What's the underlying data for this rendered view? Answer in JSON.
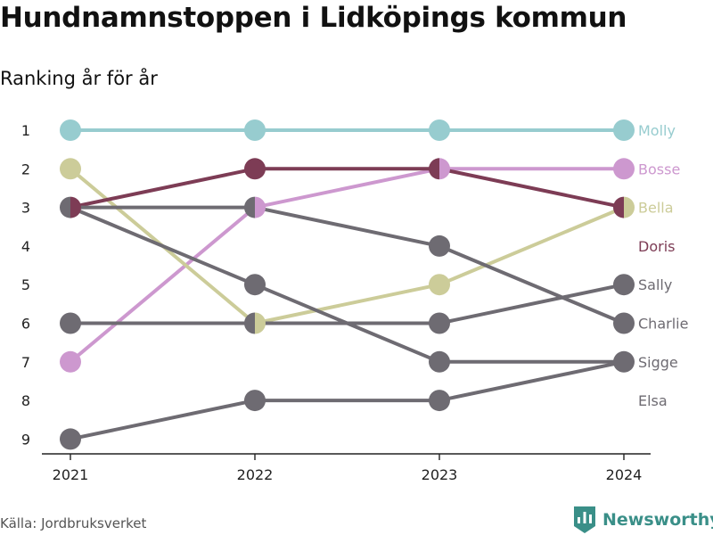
{
  "chart_data": {
    "type": "line",
    "title": "Hundnamnstoppen i Lidköpings kommun",
    "subtitle": "Ranking år för år",
    "x": [
      "2021",
      "2022",
      "2023",
      "2024"
    ],
    "y_ticks": [
      1,
      2,
      3,
      4,
      5,
      6,
      7,
      8,
      9
    ],
    "y_reversed": true,
    "grid": false,
    "series": [
      {
        "name": "Molly",
        "ranks": [
          1,
          1,
          1,
          1
        ],
        "color": "#97cccf"
      },
      {
        "name": "Bosse",
        "ranks": [
          7,
          3,
          2,
          2
        ],
        "color": "#cd98cf"
      },
      {
        "name": "Bella",
        "ranks": [
          2,
          6,
          5,
          3
        ],
        "color": "#cccc99"
      },
      {
        "name": "Doris",
        "ranks": [
          3,
          2,
          2,
          3
        ],
        "color": "#7d3c55"
      },
      {
        "name": "Sally",
        "ranks": [
          6,
          6,
          6,
          5
        ],
        "color": "#6e6b72"
      },
      {
        "name": "Charlie",
        "ranks": [
          3,
          3,
          4,
          6
        ],
        "color": "#6e6b72"
      },
      {
        "name": "Sigge",
        "ranks": [
          3,
          5,
          7,
          7
        ],
        "color": "#6e6b72"
      },
      {
        "name": "Elsa",
        "ranks": [
          9,
          8,
          8,
          7
        ],
        "color": "#6e6b72"
      }
    ],
    "label_colors": {
      "Molly": "#97cccf",
      "Bosse": "#cd98cf",
      "Bella": "#cccc99",
      "Doris": "#7d3c55",
      "Sally": "#6e6b72",
      "Charlie": "#6e6b72",
      "Sigge": "#6e6b72",
      "Elsa": "#6e6b72"
    }
  },
  "footer": {
    "source": "Källa: Jordbruksverket",
    "brand": "Newsworthy",
    "brand_icon": "bar-chart-icon"
  }
}
